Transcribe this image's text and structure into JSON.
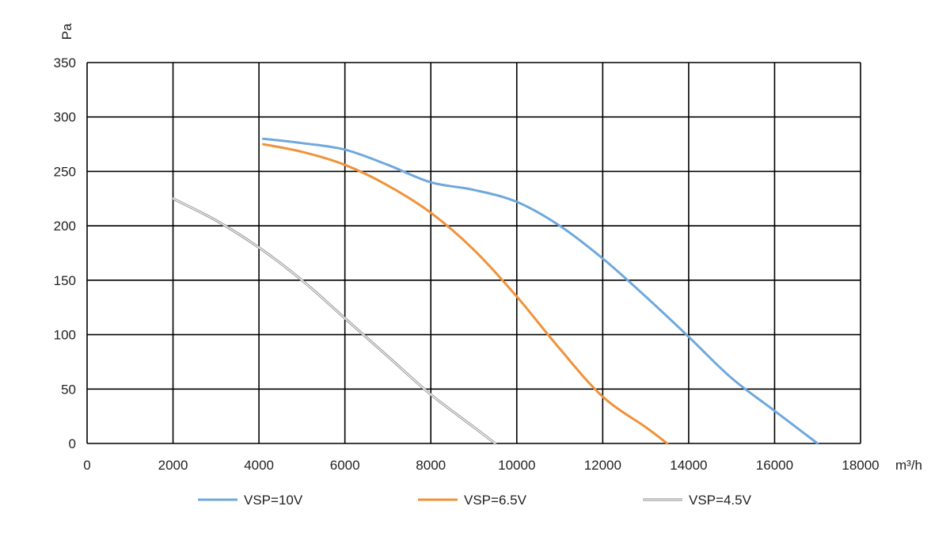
{
  "chart_data": {
    "type": "line",
    "title": "",
    "xlabel": "m³/h",
    "ylabel": "Pa",
    "xlim": [
      0,
      18000
    ],
    "ylim": [
      0,
      350
    ],
    "x_ticks": [
      0,
      2000,
      4000,
      6000,
      8000,
      10000,
      12000,
      14000,
      16000,
      18000
    ],
    "y_ticks": [
      0,
      50,
      100,
      150,
      200,
      250,
      300,
      350
    ],
    "grid": true,
    "legend_position": "bottom",
    "series": [
      {
        "name": "VSP=10V",
        "color": "#6fa8dc",
        "style": "solid",
        "points": [
          [
            4100,
            280
          ],
          [
            5000,
            276
          ],
          [
            6000,
            270
          ],
          [
            7000,
            256
          ],
          [
            8000,
            240
          ],
          [
            9000,
            233
          ],
          [
            10000,
            222
          ],
          [
            11000,
            200
          ],
          [
            12000,
            170
          ],
          [
            13000,
            135
          ],
          [
            14000,
            98
          ],
          [
            15000,
            60
          ],
          [
            16000,
            30
          ],
          [
            17000,
            0
          ]
        ]
      },
      {
        "name": "VSP=6.5V",
        "color": "#f0923a",
        "style": "solid",
        "points": [
          [
            4100,
            275
          ],
          [
            5000,
            268
          ],
          [
            6000,
            256
          ],
          [
            7000,
            237
          ],
          [
            8000,
            212
          ],
          [
            9000,
            178
          ],
          [
            10000,
            135
          ],
          [
            11000,
            87
          ],
          [
            12000,
            43
          ],
          [
            13000,
            15
          ],
          [
            13500,
            0
          ]
        ]
      },
      {
        "name": "VSP=4.5V",
        "color": "#9a9a9a",
        "style": "double",
        "points": [
          [
            2000,
            225
          ],
          [
            3000,
            205
          ],
          [
            4000,
            180
          ],
          [
            5000,
            150
          ],
          [
            6000,
            115
          ],
          [
            7000,
            80
          ],
          [
            8000,
            45
          ],
          [
            9000,
            15
          ],
          [
            9500,
            0
          ]
        ]
      }
    ]
  }
}
